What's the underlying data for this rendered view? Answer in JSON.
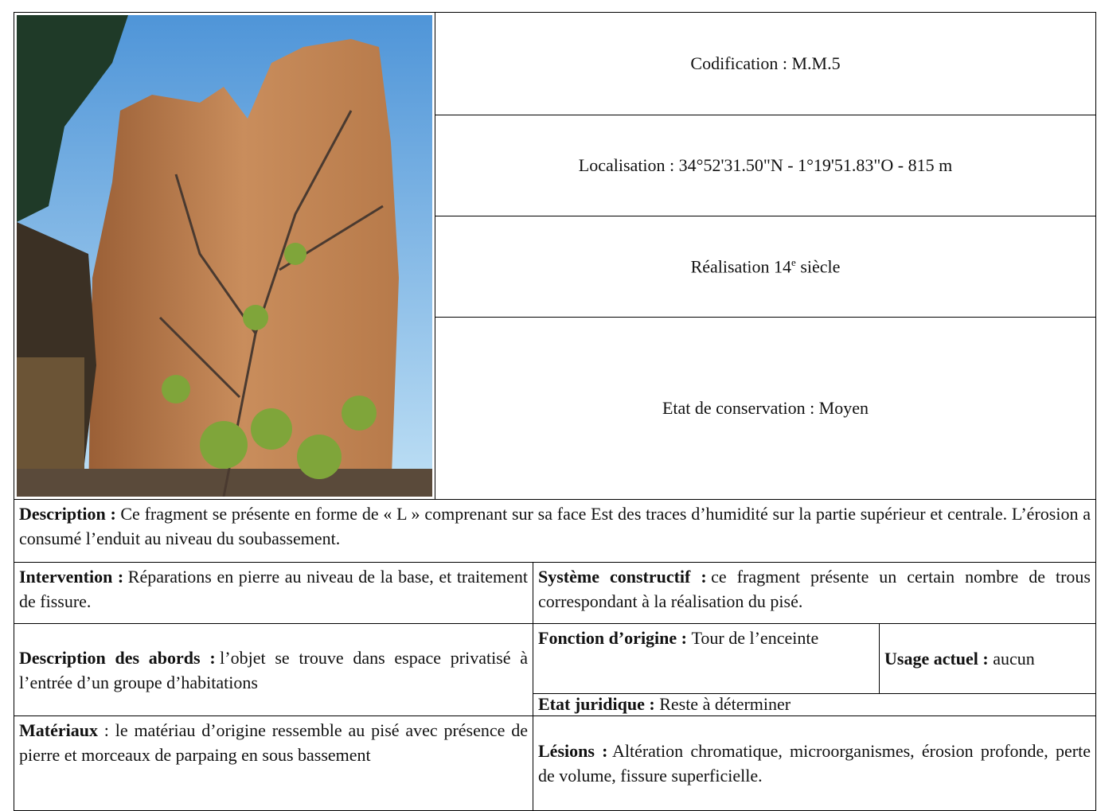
{
  "header": {
    "codification": "Codification : M.M.5",
    "localisation": "Localisation : 34°52'31.50\"N - 1°19'51.83\"O - 815 m",
    "realisation": {
      "text": "Réalisation 14",
      "superscript": "e",
      "suffix": "siècle"
    },
    "etat_conservation": "Etat de conservation : Moyen"
  },
  "fields": {
    "description": {
      "label": "Description :",
      "text": "Ce fragment se présente en forme de « L » comprenant sur sa face Est des traces d’humidité sur la partie supérieur et centrale. L’érosion a consumé l’enduit au niveau du soubassement."
    },
    "intervention": {
      "label": "Intervention :",
      "text": "Réparations en pierre au niveau de la base, et traitement de fissure."
    },
    "systeme_constructif": {
      "label": "Système constructif :",
      "text": "ce fragment présente un certain nombre de trous correspondant à la réalisation du pisé."
    },
    "description_abords": {
      "label": "Description des abords :",
      "text": "l’objet se trouve dans espace privatisé à l’entrée d’un groupe d’habitations"
    },
    "fonction_origine": {
      "label": "Fonction d’origine :",
      "text": "Tour de l’enceinte"
    },
    "usage_actuel": {
      "label": "Usage actuel :",
      "text": "aucun"
    },
    "etat_juridique": {
      "label": "Etat juridique :",
      "text": "Reste à déterminer"
    },
    "materiaux": {
      "label": "Matériaux",
      "text": ": le matériau d’origine ressemble au pisé avec présence de pierre et morceaux de parpaing en sous bassement"
    },
    "lesions": {
      "label": "Lésions :",
      "text": "Altération chromatique, microorganismes, érosion profonde, perte de volume, fissure superficielle."
    }
  }
}
